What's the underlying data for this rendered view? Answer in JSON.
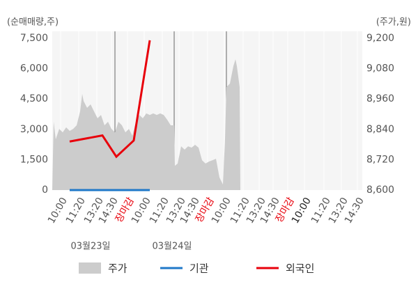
{
  "chart_data": {
    "type": "combo",
    "y_title": "(순매매량,주)",
    "y2_title": "(주가,원)",
    "xlim": [
      0,
      445
    ],
    "xticks": [
      {
        "value": 12,
        "label": "10:00"
      },
      {
        "value": 38,
        "label": "11:20"
      },
      {
        "value": 64,
        "label": "13:20"
      },
      {
        "value": 85,
        "label": "14:30"
      },
      {
        "value": 108,
        "label": "장마감",
        "color": "#e8000b"
      },
      {
        "value": 132,
        "label": "10:00"
      },
      {
        "value": 158,
        "label": "11:20"
      },
      {
        "value": 182,
        "label": "13:20"
      },
      {
        "value": 202,
        "label": "14:30"
      },
      {
        "value": 223,
        "label": "장마감",
        "color": "#e8000b"
      },
      {
        "value": 247,
        "label": "10:00"
      },
      {
        "value": 274,
        "label": "11:20"
      },
      {
        "value": 297,
        "label": "13:20"
      },
      {
        "value": 317,
        "label": "14:30"
      },
      {
        "value": 338,
        "label": "장마감",
        "color": "#e8000b"
      },
      {
        "value": 362,
        "label": "10:00",
        "color": "#222222"
      },
      {
        "value": 390,
        "label": "11:20"
      },
      {
        "value": 415,
        "label": "13:20"
      },
      {
        "value": 438,
        "label": "14:30"
      }
    ],
    "date_labels": [
      {
        "value": 55,
        "label": "03월23일"
      },
      {
        "value": 172,
        "label": "03월24일"
      }
    ],
    "dividers": [
      90,
      175,
      250
    ],
    "ylim": [
      0,
      7500
    ],
    "yticks": [
      0,
      {
        "value": 1500,
        "label": "1,500"
      },
      {
        "value": 3000,
        "label": "3,000"
      },
      {
        "value": 4500,
        "label": "4,500"
      },
      {
        "value": 6000,
        "label": "6,000"
      },
      {
        "value": 7500,
        "label": "7,500"
      }
    ],
    "y2lim": [
      8600,
      9200
    ],
    "y2ticks": [
      {
        "value": 8600,
        "label": "8,600"
      },
      {
        "value": 8720,
        "label": "8,720"
      },
      {
        "value": 8840,
        "label": "8,840"
      },
      {
        "value": 8960,
        "label": "8,960"
      },
      {
        "value": 9080,
        "label": "9,080"
      },
      {
        "value": 9200,
        "label": "9,200"
      }
    ],
    "series": [
      {
        "name": "주가",
        "kind": "area",
        "axis": "y2",
        "color": "#cccccc",
        "x": [
          0,
          2,
          5,
          10,
          15,
          20,
          25,
          30,
          35,
          40,
          43,
          45,
          50,
          55,
          60,
          65,
          70,
          75,
          80,
          85,
          90,
          95,
          100,
          105,
          110,
          115,
          120,
          125,
          130,
          135,
          140,
          145,
          150,
          155,
          160,
          165,
          170,
          175,
          176,
          180,
          185,
          190,
          195,
          200,
          205,
          210,
          215,
          220,
          225,
          230,
          235,
          240,
          245,
          248,
          250,
          255,
          260,
          263,
          265,
          269,
          270
        ],
        "values": [
          8600,
          8870,
          8801,
          8842,
          8828,
          8848,
          8834,
          8842,
          8856,
          8911,
          8980,
          8952,
          8925,
          8939,
          8911,
          8884,
          8897,
          8856,
          8870,
          8842,
          8828,
          8870,
          8856,
          8828,
          8842,
          8815,
          8870,
          8897,
          8884,
          8903,
          8897,
          8903,
          8897,
          8903,
          8897,
          8878,
          8856,
          8856,
          8696,
          8705,
          8773,
          8760,
          8773,
          8768,
          8779,
          8768,
          8718,
          8705,
          8713,
          8718,
          8724,
          8650,
          8622,
          8801,
          9007,
          9021,
          9090,
          9117,
          9090,
          9007,
          8600
        ]
      },
      {
        "name": "기관",
        "kind": "line",
        "color": "#1f78c8",
        "x": [
          25,
          72,
          92,
          117,
          140
        ],
        "values": [
          0,
          0,
          0,
          0,
          0
        ]
      },
      {
        "name": "외국인",
        "kind": "line",
        "color": "#e8000b",
        "x": [
          25,
          72,
          92,
          117,
          140
        ],
        "values": [
          2400,
          2700,
          1650,
          2450,
          7400
        ]
      }
    ]
  }
}
